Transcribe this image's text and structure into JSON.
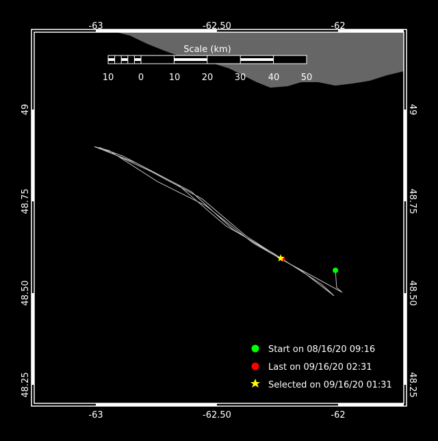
{
  "map": {
    "lon_ticks": [
      "-63",
      "-62.50",
      "-62"
    ],
    "lat_ticks": [
      "49",
      "48.75",
      "48.50",
      "48.25"
    ],
    "lon_range": [
      -63.265,
      -61.735
    ],
    "lat_range": [
      49.216,
      48.216
    ],
    "colors": {
      "background": "#000000",
      "land": "#666666",
      "track": "#c0c0c0",
      "start": "#00ff00",
      "last": "#ff0000",
      "selected": "#ffff00",
      "frame": "#ffffff"
    }
  },
  "scale_bar": {
    "title": "Scale (km)",
    "labels": [
      "10",
      "0",
      "10",
      "20",
      "30",
      "40",
      "50"
    ]
  },
  "track": {
    "points": [
      [
        -62.011,
        48.562
      ],
      [
        -62.006,
        48.515
      ],
      [
        -61.983,
        48.502
      ],
      [
        -62.096,
        48.543
      ],
      [
        -62.237,
        48.593
      ],
      [
        -62.435,
        48.674
      ],
      [
        -62.605,
        48.776
      ],
      [
        -62.831,
        48.854
      ],
      [
        -63.006,
        48.899
      ],
      [
        -62.944,
        48.888
      ],
      [
        -62.746,
        48.804
      ],
      [
        -62.548,
        48.739
      ],
      [
        -62.35,
        48.636
      ],
      [
        -62.153,
        48.562
      ],
      [
        -62.017,
        48.493
      ],
      [
        -62.068,
        48.524
      ],
      [
        -62.266,
        48.608
      ],
      [
        -62.463,
        48.683
      ],
      [
        -62.661,
        48.795
      ],
      [
        -62.887,
        48.873
      ],
      [
        -62.986,
        48.897
      ],
      [
        -62.774,
        48.832
      ],
      [
        -62.562,
        48.757
      ],
      [
        -62.379,
        48.655
      ],
      [
        -62.232,
        48.593
      ]
    ],
    "start": [
      -62.011,
      48.562
    ],
    "last": [
      -62.229,
      48.593
    ],
    "selected": [
      -62.237,
      48.595
    ]
  },
  "legend": {
    "items": [
      {
        "icon": "green-dot-icon",
        "label": "Start on 08/16/20 09:16"
      },
      {
        "icon": "red-dot-icon",
        "label": "Last on 09/16/20 02:31"
      },
      {
        "icon": "yellow-star-icon",
        "label": "Selected on 09/16/20 01:31"
      }
    ]
  }
}
